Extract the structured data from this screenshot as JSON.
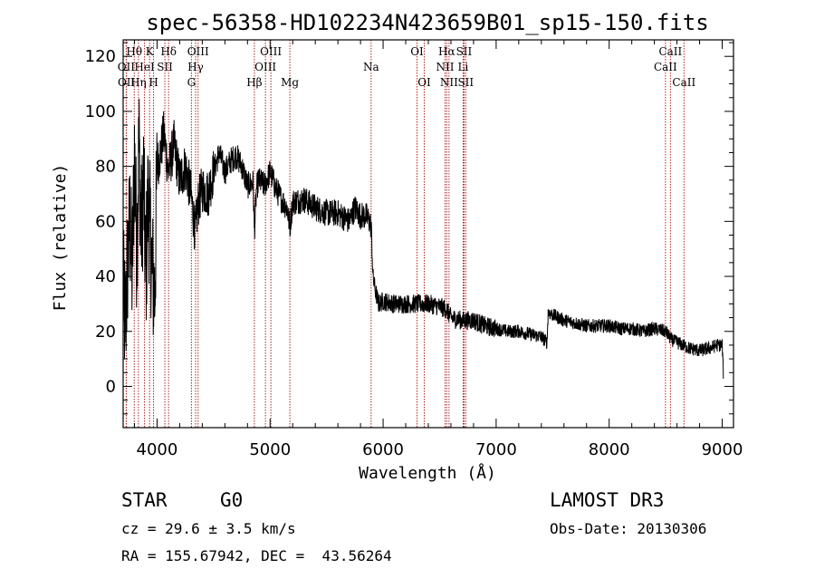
{
  "chart_data": {
    "type": "line",
    "title": "spec-56358-HD102234N423659B01_sp15-150.fits",
    "xlabel": "Wavelength (Å)",
    "ylabel": "Flux (relative)",
    "xlim": [
      3700,
      9100
    ],
    "ylim": [
      -15,
      126
    ],
    "x_ticks": [
      4000,
      5000,
      6000,
      7000,
      8000,
      9000
    ],
    "x_tick_labels": [
      "4000",
      "5000",
      "6000",
      "7000",
      "8000",
      "9000"
    ],
    "y_ticks": [
      0,
      20,
      40,
      60,
      80,
      100,
      120
    ],
    "y_tick_labels": [
      "0",
      "20",
      "40",
      "60",
      "80",
      "100",
      "120"
    ],
    "spectrum_anchors": {
      "x": [
        3700,
        3720,
        3740,
        3760,
        3780,
        3800,
        3820,
        3840,
        3860,
        3880,
        3900,
        3920,
        3940,
        3960,
        3980,
        4000,
        4030,
        4060,
        4100,
        4150,
        4200,
        4250,
        4300,
        4340,
        4360,
        4400,
        4450,
        4500,
        4550,
        4600,
        4650,
        4700,
        4750,
        4800,
        4850,
        4861,
        4880,
        4900,
        4950,
        5000,
        5050,
        5100,
        5150,
        5175,
        5200,
        5300,
        5400,
        5500,
        5600,
        5700,
        5750,
        5800,
        5850,
        5880,
        5895,
        5910,
        5930,
        5960,
        6000,
        6100,
        6200,
        6300,
        6400,
        6500,
        6560,
        6600,
        6700,
        6800,
        6900,
        7000,
        7100,
        7200,
        7300,
        7400,
        7450,
        7460,
        7500,
        7600,
        7700,
        7800,
        7900,
        8000,
        8100,
        8200,
        8300,
        8400,
        8500,
        8550,
        8600,
        8700,
        8800,
        8900,
        8950,
        9000,
        9010
      ],
      "y": [
        35,
        22,
        45,
        60,
        40,
        85,
        50,
        90,
        55,
        75,
        40,
        68,
        55,
        40,
        33,
        80,
        85,
        92,
        78,
        88,
        75,
        80,
        70,
        55,
        66,
        72,
        70,
        78,
        85,
        78,
        82,
        84,
        80,
        73,
        74,
        56,
        72,
        75,
        73,
        78,
        72,
        68,
        65,
        58,
        67,
        68,
        65,
        63,
        63,
        60,
        65,
        62,
        62,
        60,
        58,
        40,
        35,
        30,
        31,
        30,
        30,
        30,
        30,
        29,
        28,
        25,
        24,
        24,
        22,
        21,
        20,
        20,
        19,
        18,
        16,
        27,
        26,
        24,
        23,
        22,
        22,
        22,
        21,
        21,
        20,
        21,
        20,
        17,
        16,
        14,
        13,
        14,
        15,
        15,
        5
      ]
    },
    "lines": [
      {
        "name": "OII",
        "x": 3727,
        "y": 118,
        "tier": 2
      },
      {
        "name": "OII",
        "x": 3729,
        "y": 113,
        "tier": 3
      },
      {
        "name": "Hθ",
        "x": 3798,
        "y": 120,
        "tier": 1
      },
      {
        "name": "Hη",
        "x": 3835,
        "y": 113,
        "tier": 3
      },
      {
        "name": "HeI",
        "x": 3889,
        "y": 118,
        "tier": 2
      },
      {
        "name": "K",
        "x": 3934,
        "y": 120,
        "tier": 1
      },
      {
        "name": "H",
        "x": 3969,
        "y": 113,
        "tier": 3
      },
      {
        "name": "SII",
        "x": 4069,
        "y": 118,
        "tier": 2
      },
      {
        "name": "Hδ",
        "x": 4102,
        "y": 120,
        "tier": 1
      },
      {
        "name": "Hγ",
        "x": 4341,
        "y": 118,
        "tier": 2
      },
      {
        "name": "OIII",
        "x": 4363,
        "y": 120,
        "tier": 1
      },
      {
        "name": "G",
        "x": 4304,
        "y": 113,
        "tier": 3
      },
      {
        "name": "Hβ",
        "x": 4861,
        "y": 113,
        "tier": 3
      },
      {
        "name": "OIII",
        "x": 4959,
        "y": 118,
        "tier": 2
      },
      {
        "name": "OIII",
        "x": 5007,
        "y": 120,
        "tier": 1
      },
      {
        "name": "Mg",
        "x": 5175,
        "y": 113,
        "tier": 3
      },
      {
        "name": "Na",
        "x": 5894,
        "y": 118,
        "tier": 2
      },
      {
        "name": "OI",
        "x": 6300,
        "y": 120,
        "tier": 1
      },
      {
        "name": "OI",
        "x": 6364,
        "y": 113,
        "tier": 3
      },
      {
        "name": "NII",
        "x": 6548,
        "y": 118,
        "tier": 2
      },
      {
        "name": "Hα",
        "x": 6563,
        "y": 120,
        "tier": 1
      },
      {
        "name": "NII",
        "x": 6583,
        "y": 113,
        "tier": 3
      },
      {
        "name": "Li",
        "x": 6708,
        "y": 118,
        "tier": 2
      },
      {
        "name": "SII",
        "x": 6716,
        "y": 120,
        "tier": 1
      },
      {
        "name": "SII",
        "x": 6731,
        "y": 113,
        "tier": 3
      },
      {
        "name": "CaII",
        "x": 8498,
        "y": 118,
        "tier": 2
      },
      {
        "name": "CaII",
        "x": 8542,
        "y": 120,
        "tier": 1
      },
      {
        "name": "CaII",
        "x": 8662,
        "y": 113,
        "tier": 3
      }
    ]
  },
  "info": {
    "object_class": "STAR",
    "subclass": "G0",
    "survey": "LAMOST DR3",
    "redshift": "cz = 29.6 ± 3.5 km/s",
    "obs_date": "Obs-Date: 20130306",
    "coords": "RA = 155.67942, DEC =  43.56264"
  },
  "colors": {
    "axis": "#000000",
    "spectrum": "#000000",
    "line_marker": "#b22222",
    "background": "#ffffff"
  }
}
